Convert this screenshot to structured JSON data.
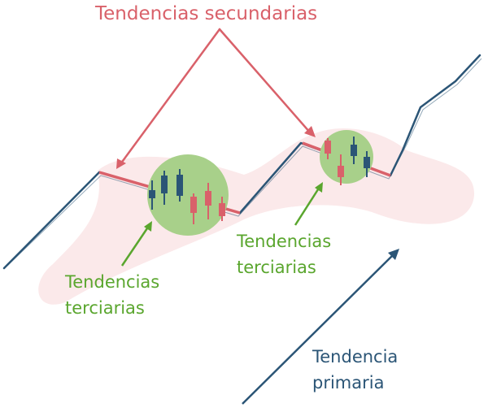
{
  "labels": {
    "secondary_trends": "Tendencias secundarias",
    "tertiary_left": [
      "Tendencias",
      "terciarias"
    ],
    "tertiary_right": [
      "Tendencias",
      "terciarias"
    ],
    "primary_trend": [
      "Tendencia",
      "primaria"
    ]
  },
  "colors": {
    "secondary": "#d9616a",
    "tertiary": "#5aa62e",
    "primary": "#2b5576",
    "band": "#fbe9ea",
    "circle": "#a8d08a",
    "candle_blue": "#2b5576",
    "candle_red": "#d9616a"
  },
  "icons": [
    "up-arrow-icon",
    "candlestick-icon"
  ]
}
